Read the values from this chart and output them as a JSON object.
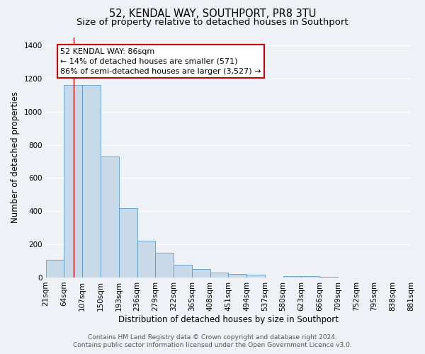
{
  "title": "52, KENDAL WAY, SOUTHPORT, PR8 3TU",
  "subtitle": "Size of property relative to detached houses in Southport",
  "xlabel": "Distribution of detached houses by size in Southport",
  "ylabel": "Number of detached properties",
  "bin_edges": [
    21,
    64,
    107,
    150,
    193,
    236,
    279,
    322,
    365,
    408,
    451,
    494,
    537,
    580,
    623,
    666,
    709,
    752,
    795,
    838,
    881
  ],
  "bar_heights": [
    107,
    1160,
    1160,
    730,
    420,
    220,
    150,
    75,
    50,
    30,
    20,
    15,
    0,
    8,
    8,
    5,
    0,
    0,
    0,
    0
  ],
  "bar_color": "#c8daea",
  "bar_edge_color": "#5b9bc8",
  "red_line_x": 86,
  "red_line_color": "#cc0000",
  "ylim": [
    0,
    1450
  ],
  "yticks": [
    0,
    200,
    400,
    600,
    800,
    1000,
    1200,
    1400
  ],
  "annotation_title": "52 KENDAL WAY: 86sqm",
  "annotation_line1": "← 14% of detached houses are smaller (571)",
  "annotation_line2": "86% of semi-detached houses are larger (3,527) →",
  "annotation_box_facecolor": "#ffffff",
  "annotation_box_edge_color": "#cc0000",
  "footer_line1": "Contains HM Land Registry data © Crown copyright and database right 2024.",
  "footer_line2": "Contains public sector information licensed under the Open Government Licence v3.0.",
  "background_color": "#eef2f7",
  "plot_bg_color": "#eef2f7",
  "grid_color": "#ffffff",
  "title_fontsize": 10.5,
  "subtitle_fontsize": 9.5,
  "axis_label_fontsize": 8.5,
  "tick_fontsize": 7.5,
  "annotation_fontsize": 8,
  "footer_fontsize": 6.5
}
